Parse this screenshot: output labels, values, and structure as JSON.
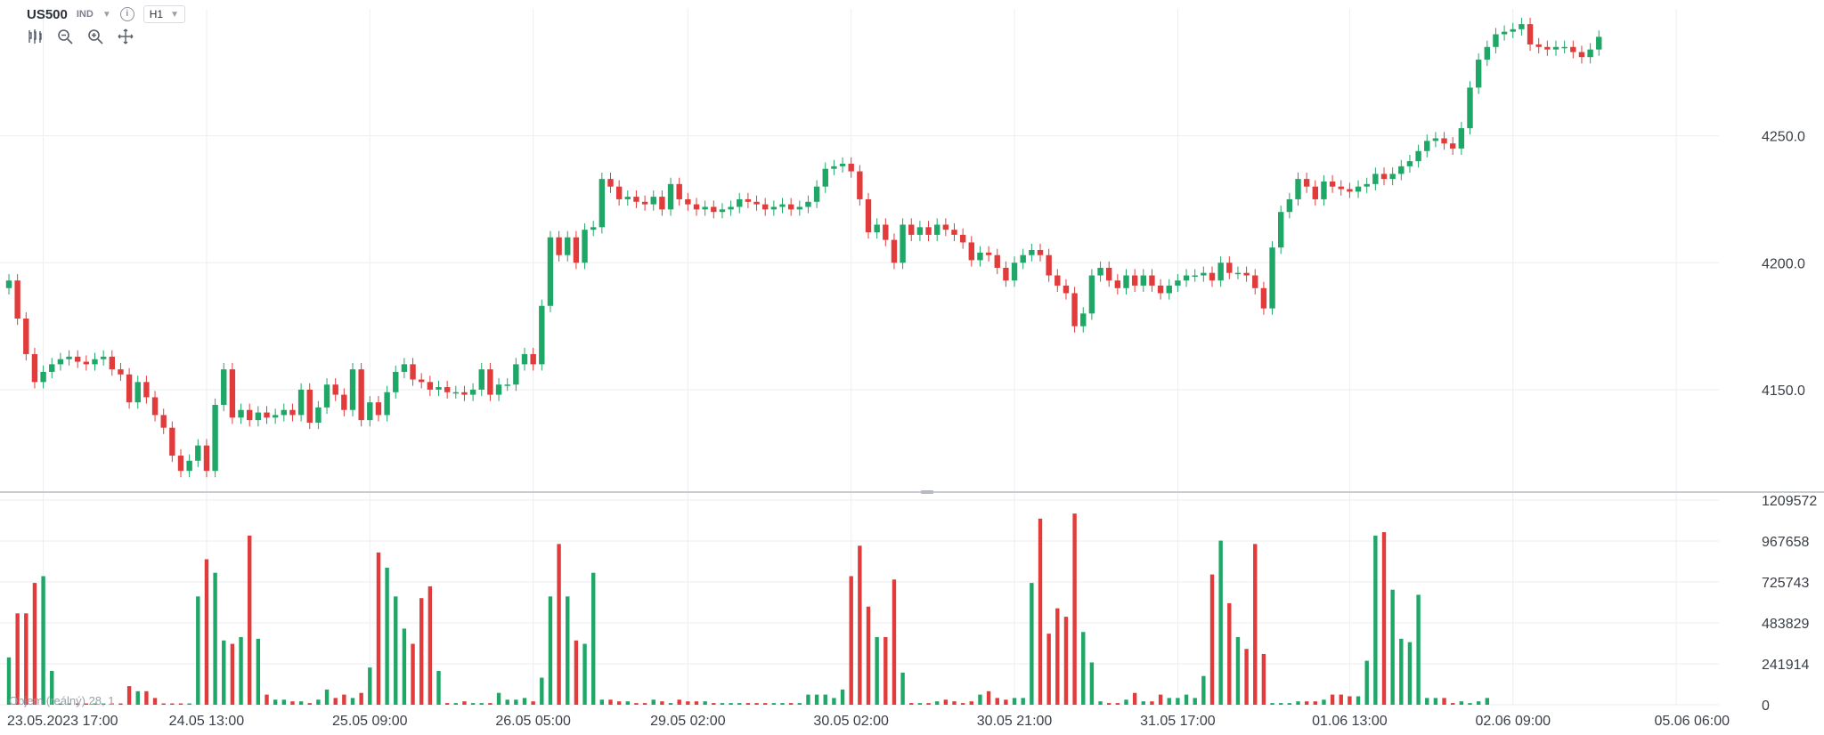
{
  "header": {
    "symbol": "US500",
    "type": "IND",
    "info_icon": "info-icon",
    "timeframe": "H1"
  },
  "toolbar_icons": [
    "candles-icon",
    "zoom-out-icon",
    "zoom-in-icon",
    "move-icon"
  ],
  "volume_label": "Objem (reálný) 28, 1",
  "colors": {
    "up": "#1fa767",
    "down": "#e23b3b",
    "grid": "#eceef1",
    "axis_text": "#3a3f47"
  },
  "chart_data": [
    {
      "type": "candlestick",
      "title": "US500",
      "timeframe": "H1",
      "ylim": [
        4110,
        4300
      ],
      "y_ticks": [
        4150.0,
        4200.0,
        4250.0
      ],
      "y_tick_labels": [
        "4150.0",
        "4200.0",
        "4250.0"
      ],
      "x_tick_labels": [
        "23.05.2023 17:00",
        "24.05 13:00",
        "25.05 09:00",
        "26.05 05:00",
        "29.05 02:00",
        "30.05 02:00",
        "30.05 21:00",
        "31.05 17:00",
        "01.06 13:00",
        "02.06 09:00",
        "05.06 06:00"
      ],
      "grid": true,
      "closes": [
        4193,
        4178,
        4164,
        4153,
        4157,
        4160,
        4162,
        4163,
        4161,
        4160,
        4162,
        4163,
        4158,
        4156,
        4145,
        4153,
        4147,
        4140,
        4135,
        4124,
        4118,
        4122,
        4128,
        4118,
        4144,
        4158,
        4139,
        4142,
        4138,
        4141,
        4139,
        4140,
        4142,
        4140,
        4150,
        4137,
        4143,
        4152,
        4148,
        4142,
        4158,
        4138,
        4145,
        4140,
        4149,
        4157,
        4160,
        4154,
        4153,
        4150,
        4151,
        4149,
        4149,
        4148,
        4150,
        4158,
        4148,
        4152,
        4152,
        4160,
        4164,
        4160,
        4183,
        4210,
        4203,
        4210,
        4200,
        4213,
        4214,
        4233,
        4230,
        4225,
        4226,
        4224,
        4223,
        4226,
        4221,
        4231,
        4225,
        4223,
        4221,
        4222,
        4220,
        4221,
        4222,
        4225,
        4224,
        4223,
        4221,
        4222,
        4223,
        4221,
        4222,
        4224,
        4230,
        4237,
        4238,
        4239,
        4236,
        4225,
        4212,
        4215,
        4209,
        4200,
        4215,
        4211,
        4214,
        4211,
        4215,
        4213,
        4211,
        4208,
        4201,
        4204,
        4203,
        4198,
        4193,
        4200,
        4203,
        4205,
        4203,
        4195,
        4191,
        4188,
        4175,
        4180,
        4195,
        4198,
        4193,
        4190,
        4195,
        4191,
        4195,
        4191,
        4188,
        4191,
        4193,
        4195,
        4195,
        4196,
        4193,
        4200,
        4196,
        4196,
        4195,
        4190,
        4182,
        4206,
        4220,
        4225,
        4233,
        4230,
        4225,
        4232,
        4230,
        4229,
        4228,
        4230,
        4231,
        4235,
        4233,
        4235,
        4238,
        4240,
        4244,
        4248,
        4249,
        4247,
        4245,
        4253,
        4269,
        4280,
        4285,
        4290,
        4291,
        4292,
        4294,
        4286,
        4285,
        4284,
        4285,
        4285,
        4283,
        4281,
        4284,
        4289
      ],
      "x_tick_bar_index": [
        4,
        23,
        42,
        61,
        79,
        98,
        117,
        136,
        156,
        175,
        194
      ]
    },
    {
      "type": "bar",
      "title": "Objem (reálný)",
      "ylim": [
        0,
        1209572
      ],
      "y_tick_labels": [
        "1209572",
        "967658",
        "725743",
        "483829",
        "241914",
        "0"
      ],
      "volumes": [
        280000,
        540000,
        540000,
        720000,
        760000,
        200000,
        0,
        0,
        0,
        0,
        0,
        0,
        0,
        0,
        110000,
        80000,
        80000,
        40000,
        0,
        0,
        0,
        0,
        640000,
        860000,
        780000,
        380000,
        360000,
        400000,
        1000000,
        390000,
        60000,
        30000,
        30000,
        20000,
        20000,
        10000,
        30000,
        90000,
        40000,
        60000,
        40000,
        70000,
        220000,
        900000,
        810000,
        640000,
        450000,
        360000,
        630000,
        700000,
        200000,
        10000,
        10000,
        20000,
        10000,
        10000,
        10000,
        70000,
        30000,
        30000,
        40000,
        20000,
        160000,
        640000,
        950000,
        640000,
        380000,
        360000,
        780000,
        30000,
        30000,
        20000,
        20000,
        10000,
        10000,
        30000,
        20000,
        10000,
        30000,
        20000,
        20000,
        20000,
        10000,
        10000,
        10000,
        10000,
        10000,
        10000,
        10000,
        10000,
        10000,
        10000,
        10000,
        60000,
        60000,
        60000,
        40000,
        90000,
        760000,
        940000,
        580000,
        400000,
        400000,
        740000,
        190000,
        10000,
        10000,
        10000,
        20000,
        30000,
        20000,
        10000,
        20000,
        60000,
        80000,
        40000,
        30000,
        40000,
        40000,
        720000,
        1100000,
        420000,
        570000,
        520000,
        1130000,
        430000,
        250000,
        20000,
        10000,
        10000,
        30000,
        70000,
        20000,
        20000,
        60000,
        40000,
        40000,
        60000,
        40000,
        170000,
        770000,
        970000,
        600000,
        400000,
        330000,
        950000,
        300000,
        10000,
        10000,
        10000,
        20000,
        20000,
        20000,
        30000,
        60000,
        60000,
        50000,
        50000,
        260000,
        1000000,
        1020000,
        680000,
        390000,
        370000,
        650000,
        40000,
        40000,
        40000,
        10000,
        20000,
        10000,
        20000,
        40000
      ]
    }
  ]
}
